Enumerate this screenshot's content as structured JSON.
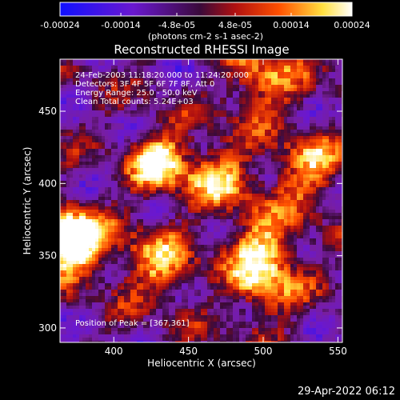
{
  "colorbar": {
    "tick_labels": [
      "-0.00024",
      "-0.00014",
      "-4.8e-05",
      "4.8e-05",
      "0.00014",
      "0.00024"
    ],
    "tick_values": [
      -0.00024,
      -0.00014,
      -4.8e-05,
      4.8e-05,
      0.00014,
      0.00024
    ],
    "range": [
      -0.00024,
      0.00024
    ],
    "units_label": "(photons cm-2 s-1 asec-2)",
    "colors": [
      "#1010ff",
      "#6a18d0",
      "#3a0a3a",
      "#b01010",
      "#ff5000",
      "#ffe040",
      "#ffffff"
    ]
  },
  "chart_data": {
    "type": "heatmap",
    "title": "Reconstructed RHESSI Image",
    "xlabel": "Heliocentric X (arcsec)",
    "ylabel": "Heliocentric Y (arcsec)",
    "xlim": [
      364,
      553
    ],
    "ylim": [
      290,
      486
    ],
    "x_ticks": [
      400,
      450,
      500,
      550
    ],
    "y_ticks": [
      300,
      350,
      400,
      450
    ],
    "annotations": [
      "24-Feb-2003 11:18:20.000 to 11:24:20.000",
      "Detectors: 3F 4F 5F 6F 7F 8F, Att 0",
      "Energy Range: 25.0 - 50.0 keV",
      "Clean     Total counts: 5.24E+03"
    ],
    "peak_label": "Position of Peak = [367,361]",
    "peak_position": [
      367,
      361
    ],
    "bright_regions": [
      {
        "x": 430,
        "y": 415
      },
      {
        "x": 470,
        "y": 405
      },
      {
        "x": 378,
        "y": 360
      },
      {
        "x": 500,
        "y": 470
      },
      {
        "x": 530,
        "y": 410
      },
      {
        "x": 500,
        "y": 360
      },
      {
        "x": 430,
        "y": 345
      },
      {
        "x": 500,
        "y": 330
      }
    ]
  },
  "timestamp": "29-Apr-2022 06:12"
}
